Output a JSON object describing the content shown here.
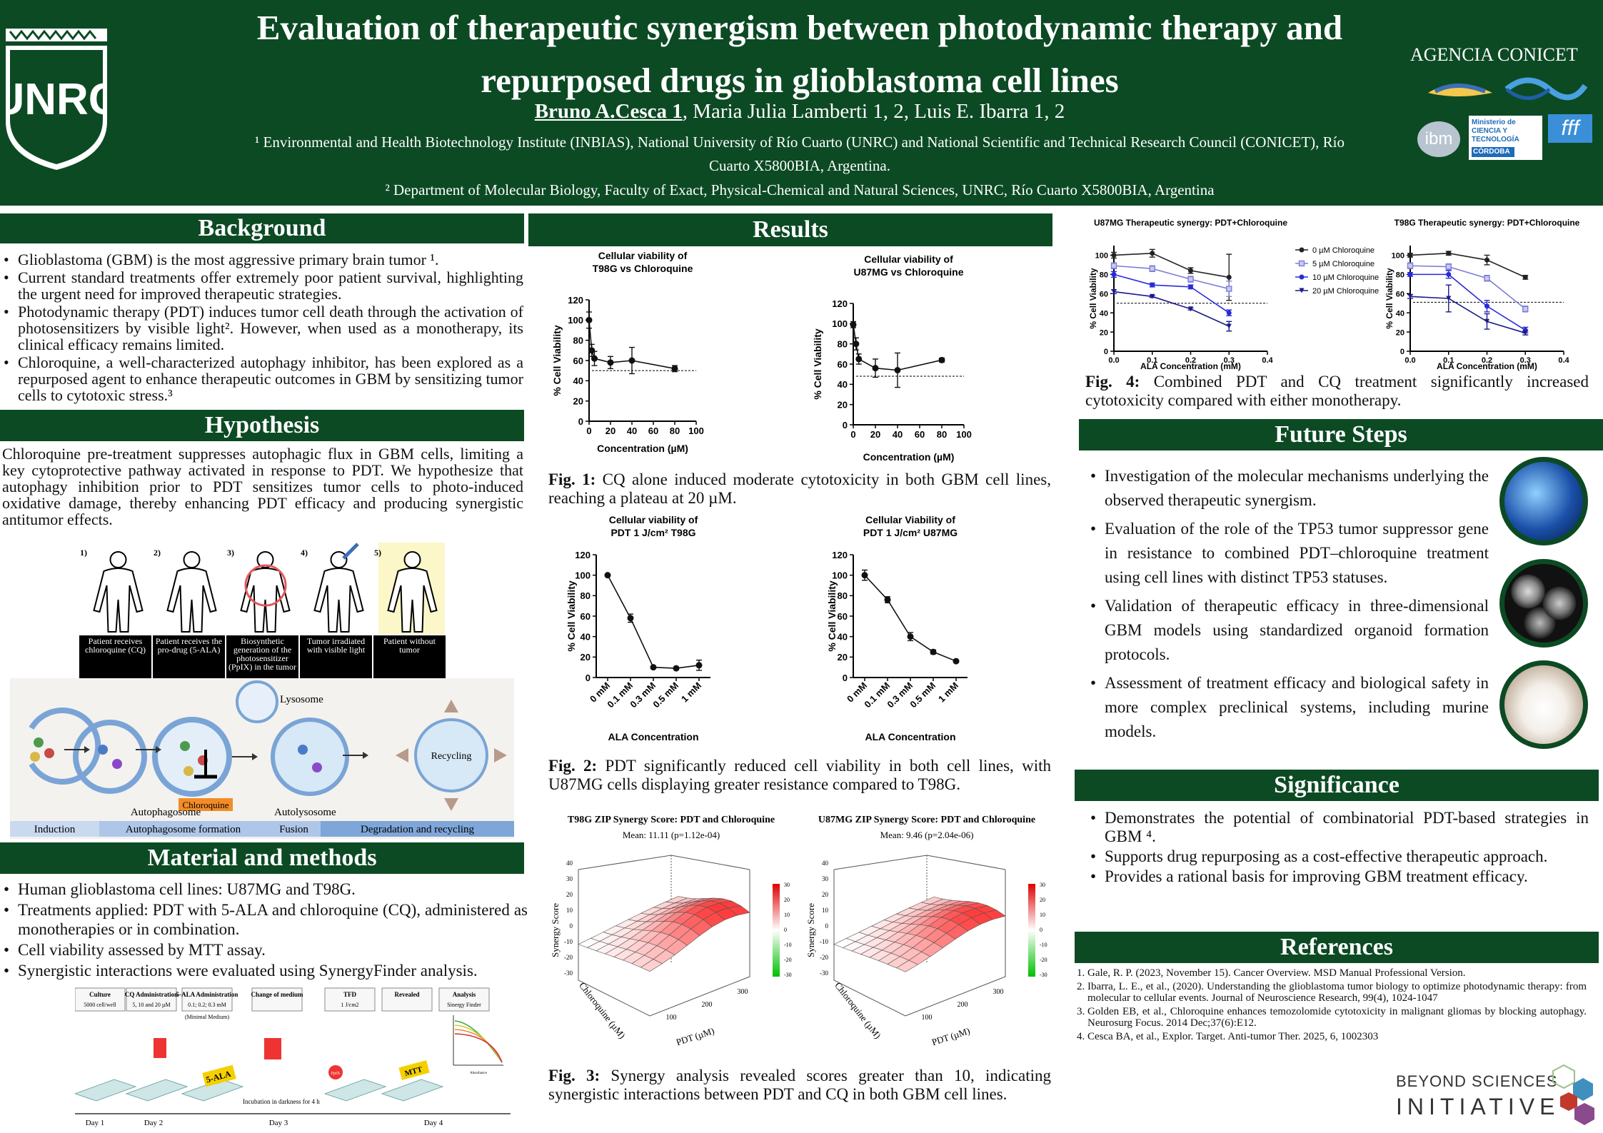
{
  "header": {
    "title_line1": "Evaluation of therapeutic synergism between photodynamic therapy and",
    "title_line2": "repurposed drugs in glioblastoma cell lines",
    "author_main": "Bruno A.Cesca 1",
    "authors_rest": ", Maria Julia Lamberti 1, 2, Luis E. Ibarra 1, 2",
    "aff1_line1": "¹ Environmental and Health Biotechnology Institute (INBIAS), National University of Río Cuarto (UNRC) and National Scientific and Technical Research Council (CONICET), Río",
    "aff1_line2": "Cuarto X5800BIA, Argentina.",
    "aff2": "² Department of Molecular Biology, Faculty of Exact, Physical-Chemical and Natural Sciences, UNRC, Río Cuarto X5800BIA, Argentina",
    "logo_text": "UNRC",
    "agency": "AGENCIA CONICET",
    "logo_ibm": "ibm",
    "logo_ministerio": "Ministerio de CIENCIA Y TECNOLOGÍA",
    "logo_cordoba": "CÓRDOBA",
    "logo_fff": "fff"
  },
  "background": {
    "heading": "Background",
    "items": [
      "Glioblastoma (GBM) is the most aggressive primary brain tumor ¹.",
      "Current standard treatments offer extremely poor patient survival, highlighting the urgent need for improved therapeutic strategies.",
      "Photodynamic therapy (PDT) induces tumor cell death through the activation of photosensitizers by visible light². However, when used as a monotherapy, its clinical efficacy remains limited.",
      "Chloroquine, a well-characterized autophagy inhibitor, has been explored as a repurposed agent to enhance therapeutic outcomes in GBM by sensitizing tumor cells to cytotoxic stress.³"
    ]
  },
  "hypothesis": {
    "heading": "Hypothesis",
    "text": "Chloroquine pre-treatment suppresses autophagic flux in GBM cells, limiting a key cytoprotective pathway activated in response to PDT. We hypothesize that autophagy inhibition prior to PDT sensitizes tumor cells to photo-induced oxidative damage, thereby enhancing PDT efficacy and producing synergistic antitumor effects."
  },
  "patients": {
    "steps": [
      "1)",
      "2)",
      "3)",
      "4)",
      "5)"
    ],
    "labels": [
      "Patient receives chloroquine (CQ)",
      "Patient receives the pro-drug (5-ALA)",
      "Biosynthetic generation of the photosensitizer (PpIX) in the tumor",
      "Tumor irradiated with visible light",
      "Patient without tumor"
    ]
  },
  "autophagy": {
    "lysosome": "Lysosome",
    "autophagosome": "Autophagosome",
    "autolysosome": "Autolysosome",
    "chloroquine": "Chloroquine",
    "recycling": "Recycling",
    "stages": [
      "Induction",
      "Autophagosome formation",
      "Fusion",
      "Degradation and recycling"
    ]
  },
  "methods": {
    "heading": "Material and methods",
    "items": [
      "Human glioblastoma cell lines: U87MG and T98G.",
      "Treatments applied: PDT with 5-ALA and chloroquine (CQ), administered as monotherapies or in combination.",
      "Cell viability assessed by MTT assay.",
      "Synergistic interactions were evaluated using SynergyFinder analysis."
    ],
    "timeline": {
      "boxes": [
        "Culture",
        "CQ Administration",
        "5-ALA Administration",
        "Change of medium",
        "TFD",
        "Revealed",
        "Analysis"
      ],
      "sub": [
        "5000 cell/well",
        "5, 10 and 20 µM",
        "0.1; 0.2; 0.3 mM",
        "",
        "1 J/cm2",
        "",
        "Sinergy Finder"
      ],
      "minimal": "(Minimal Medium)",
      "ala": "5-ALA",
      "mtt": "MTT",
      "ppix": "PpIX",
      "incubation": "Incubation in darkness for 4 h",
      "days": [
        "Day 1",
        "Day 2",
        "Day 3",
        "Day 4"
      ],
      "axis_label": "Absorbance"
    }
  },
  "results": {
    "heading": "Results",
    "fig1_caption_b": "Fig. 1:",
    "fig1_caption": " CQ alone induced moderate cytotoxicity in both GBM cell lines, reaching a plateau at 20 µM.",
    "fig2_caption_b": "Fig. 2:",
    "fig2_caption": " PDT significantly reduced cell viability in both cell lines, with U87MG cells displaying greater resistance compared to T98G.",
    "fig3_caption_b": "Fig. 3:",
    "fig3_caption": " Synergy analysis revealed scores greater than 10, indicating synergistic interactions between PDT and CQ in both GBM cell lines.",
    "fig4_caption_b": "Fig. 4:",
    "fig4_caption": " Combined PDT and CQ treatment significantly increased cytotoxicity compared with either monotherapy."
  },
  "synergy": {
    "t98g_title": "T98G ZIP Synergy Score: PDT and Chloroquine",
    "t98g_mean": "Mean: 11.11 (p=1.12e-04)",
    "u87_title": "U87MG ZIP Synergy Score: PDT and Chloroquine",
    "u87_mean": "Mean: 9.46 (p=2.04e-06)",
    "zlabel": "Synergy Score",
    "xlabel": "PDT (µM)",
    "ylabel": "Chloroquine (µM)",
    "ticks_x": [
      "100",
      "200",
      "300"
    ],
    "ticks_z": [
      "40",
      "30",
      "20",
      "10",
      "0",
      "-10",
      "-20",
      "-30"
    ],
    "scale": [
      "30",
      "20",
      "10",
      "0",
      "-10",
      "-20",
      "-30"
    ]
  },
  "future": {
    "heading": "Future Steps",
    "items": [
      "Investigation of the molecular mechanisms underlying the observed therapeutic synergism.",
      "Evaluation of the role of the TP53 tumor suppressor gene in resistance to combined PDT–chloroquine treatment using cell lines with distinct TP53 statuses.",
      "Validation of therapeutic efficacy in three-dimensional GBM models using standardized organoid formation protocols.",
      "Assessment of treatment efficacy and biological safety in more complex preclinical systems, including murine models."
    ]
  },
  "significance": {
    "heading": "Significance",
    "items": [
      "Demonstrates the potential of combinatorial PDT-based strategies in GBM ⁴.",
      "Supports drug repurposing as a cost-effective therapeutic approach.",
      "Provides a rational basis for improving GBM treatment efficacy."
    ]
  },
  "references": {
    "heading": "References",
    "items": [
      "Gale, R. P. (2023, November 15). Cancer Overview. MSD Manual Professional Version.",
      "Ibarra, L. E., et al., (2020). Understanding the glioblastoma tumor biology to optimize photodynamic therapy: from molecular to cellular events. Journal of Neuroscience Research, 99(4), 1024-1047",
      "Golden EB, et al., Chloroquine enhances temozolomide cytotoxicity in malignant gliomas by blocking autophagy. Neurosurg Focus. 2014 Dec;37(6):E12.",
      "Cesca BA, et al., Explor. Target. Anti-tumor Ther. 2025, 6, 1002303"
    ]
  },
  "footer_logo": {
    "line1": "BEYOND SCIENCES",
    "line2": "INITIATIVE"
  },
  "chart_data": [
    {
      "id": "fig1a",
      "type": "line",
      "title": "Cellular viability of T98G vs Chloroquine",
      "xlabel": "Concentration (µM)",
      "ylabel": "% Cell Viability",
      "x": [
        0,
        2.5,
        5,
        20,
        40,
        80
      ],
      "y": [
        100,
        70,
        62,
        58,
        60,
        52
      ],
      "err": [
        8,
        6,
        7,
        6,
        13,
        3
      ],
      "xlim": [
        0,
        100
      ],
      "ylim": [
        0,
        120
      ],
      "xticks": [
        0,
        20,
        40,
        60,
        80,
        100
      ],
      "yticks": [
        0,
        20,
        40,
        60,
        80,
        100,
        120
      ],
      "hline": 50
    },
    {
      "id": "fig1b",
      "type": "line",
      "title": "Cellular viability of U87MG vs Chloroquine",
      "xlabel": "Concentration (µM)",
      "ylabel": "% Cell Viability",
      "x": [
        0,
        2.5,
        5,
        20,
        40,
        80
      ],
      "y": [
        99,
        80,
        65,
        56,
        54,
        64
      ],
      "err": [
        3,
        6,
        5,
        9,
        17,
        2
      ],
      "xlim": [
        0,
        100
      ],
      "ylim": [
        0,
        120
      ],
      "xticks": [
        0,
        20,
        40,
        60,
        80,
        100
      ],
      "yticks": [
        0,
        20,
        40,
        60,
        80,
        100,
        120
      ],
      "hline": 48
    },
    {
      "id": "fig2a",
      "type": "line",
      "title": "Cellular viability of PDT 1 J/cm² T98G",
      "xlabel": "ALA Concentration",
      "ylabel": "% Cell Viability",
      "categories": [
        "0 mM",
        "0.1 mM",
        "0.3 mM",
        "0.5 mM",
        "1 mM"
      ],
      "y": [
        100,
        58,
        10,
        9,
        12
      ],
      "err": [
        1,
        4,
        1,
        1,
        5
      ],
      "ylim": [
        0,
        120
      ],
      "yticks": [
        0,
        20,
        40,
        60,
        80,
        100,
        120
      ]
    },
    {
      "id": "fig2b",
      "type": "line",
      "title": "Cellular Viability of PDT 1 J/cm² U87MG",
      "xlabel": "ALA Concentration",
      "ylabel": "% Cell Viability",
      "categories": [
        "0 mM",
        "0.1 mM",
        "0.3 mM",
        "0.5 mM",
        "1 mM"
      ],
      "y": [
        100,
        76,
        40,
        25,
        16
      ],
      "err": [
        5,
        3,
        4,
        2,
        1
      ],
      "ylim": [
        0,
        120
      ],
      "yticks": [
        0,
        20,
        40,
        60,
        80,
        100,
        120
      ]
    },
    {
      "id": "fig4a",
      "type": "line",
      "title": "U87MG Therapeutic synergy: PDT+Chloroquine",
      "xlabel": "ALA Concentration (mM)",
      "ylabel": "% Cell Viability",
      "x": [
        0,
        0.1,
        0.2,
        0.3
      ],
      "xlim": [
        0,
        0.4
      ],
      "ylim": [
        0,
        110
      ],
      "xticks": [
        0.0,
        0.1,
        0.2,
        0.3,
        0.4
      ],
      "yticks": [
        0,
        20,
        40,
        60,
        80,
        100
      ],
      "hline": 50,
      "series": [
        {
          "name": "0 µM Chloroquine",
          "values": [
            100,
            102,
            84,
            77
          ],
          "err": [
            3,
            4,
            3,
            24
          ],
          "marker": "circle",
          "color": "#222222"
        },
        {
          "name": "5 µM Chloroquine",
          "values": [
            89,
            86,
            75,
            65
          ],
          "err": [
            3,
            3,
            3,
            8
          ],
          "marker": "square",
          "color": "#7d7dd8"
        },
        {
          "name": "10 µM Chloroquine",
          "values": [
            80,
            69,
            67,
            40
          ],
          "err": [
            3,
            2,
            2,
            3
          ],
          "marker": "dot",
          "color": "#2a2ad8"
        },
        {
          "name": "20 µM Chloroquine",
          "values": [
            62,
            57,
            44,
            26
          ],
          "err": [
            2,
            1,
            1,
            5
          ],
          "marker": "triangle",
          "color": "#1a1a8a"
        }
      ]
    },
    {
      "id": "fig4b",
      "type": "line",
      "title": "T98G Therapeutic synergy: PDT+Chloroquine",
      "xlabel": "ALA Concentration (mM)",
      "ylabel": "% Cell Viability",
      "x": [
        0,
        0.1,
        0.2,
        0.3
      ],
      "xlim": [
        0,
        0.4
      ],
      "ylim": [
        0,
        110
      ],
      "xticks": [
        0.0,
        0.1,
        0.2,
        0.3,
        0.4
      ],
      "yticks": [
        0,
        20,
        40,
        60,
        80,
        100
      ],
      "hline": 51,
      "series": [
        {
          "name": "0 µM Chloroquine",
          "values": [
            100,
            102,
            95,
            77
          ],
          "err": [
            2,
            2,
            5,
            2
          ],
          "marker": "circle",
          "color": "#222222"
        },
        {
          "name": "5 µM Chloroquine",
          "values": [
            89,
            88,
            76,
            44
          ],
          "err": [
            3,
            3,
            3,
            3
          ],
          "marker": "square",
          "color": "#7d7dd8"
        },
        {
          "name": "10 µM Chloroquine",
          "values": [
            80,
            80,
            47,
            22
          ],
          "err": [
            2,
            4,
            6,
            3
          ],
          "marker": "dot",
          "color": "#2a2ad8"
        },
        {
          "name": "20 µM Chloroquine",
          "values": [
            57,
            55,
            31,
            19
          ],
          "err": [
            2,
            14,
            8,
            2
          ],
          "marker": "triangle",
          "color": "#1a1a8a"
        }
      ]
    }
  ]
}
